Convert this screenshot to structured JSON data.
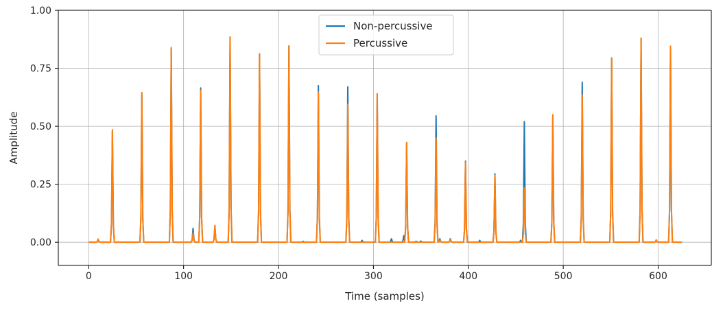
{
  "chart_data": {
    "type": "line",
    "title": "",
    "xlabel": "Time (samples)",
    "ylabel": "Amplitude",
    "xlim": [
      -32,
      656
    ],
    "ylim": [
      -0.1,
      1.0
    ],
    "xticks": [
      0,
      100,
      200,
      300,
      400,
      500,
      600
    ],
    "yticks": [
      0.0,
      0.25,
      0.5,
      0.75,
      1.0
    ],
    "ytick_labels": [
      "0.00",
      "0.25",
      "0.50",
      "0.75",
      "1.00"
    ],
    "grid": true,
    "legend_position": "top-center",
    "series": [
      {
        "name": "Non-percussive",
        "color": "#1f77b4",
        "n_samples": 626,
        "peaks": [
          {
            "x": 10,
            "y": 0.012
          },
          {
            "x": 25,
            "y": 0.48
          },
          {
            "x": 56,
            "y": 0.645
          },
          {
            "x": 87,
            "y": 0.835
          },
          {
            "x": 110,
            "y": 0.06
          },
          {
            "x": 118,
            "y": 0.665
          },
          {
            "x": 133,
            "y": 0.07
          },
          {
            "x": 149,
            "y": 0.885
          },
          {
            "x": 180,
            "y": 0.81
          },
          {
            "x": 211,
            "y": 0.845
          },
          {
            "x": 226,
            "y": 0.004
          },
          {
            "x": 242,
            "y": 0.675
          },
          {
            "x": 273,
            "y": 0.67
          },
          {
            "x": 288,
            "y": 0.008
          },
          {
            "x": 304,
            "y": 0.64
          },
          {
            "x": 319,
            "y": 0.015
          },
          {
            "x": 332,
            "y": 0.028
          },
          {
            "x": 335,
            "y": 0.43
          },
          {
            "x": 345,
            "y": 0.004
          },
          {
            "x": 350,
            "y": 0.005
          },
          {
            "x": 366,
            "y": 0.545
          },
          {
            "x": 370,
            "y": 0.015
          },
          {
            "x": 381,
            "y": 0.015
          },
          {
            "x": 397,
            "y": 0.35
          },
          {
            "x": 412,
            "y": 0.008
          },
          {
            "x": 428,
            "y": 0.295
          },
          {
            "x": 455,
            "y": 0.008
          },
          {
            "x": 459,
            "y": 0.52
          },
          {
            "x": 489,
            "y": 0.545
          },
          {
            "x": 520,
            "y": 0.69
          },
          {
            "x": 551,
            "y": 0.795
          },
          {
            "x": 582,
            "y": 0.88
          },
          {
            "x": 598,
            "y": 0.01
          },
          {
            "x": 613,
            "y": 0.845
          }
        ]
      },
      {
        "name": "Percussive",
        "color": "#ff7f0e",
        "n_samples": 626,
        "peaks": [
          {
            "x": 10,
            "y": 0.014
          },
          {
            "x": 25,
            "y": 0.485
          },
          {
            "x": 56,
            "y": 0.645
          },
          {
            "x": 87,
            "y": 0.84
          },
          {
            "x": 110,
            "y": 0.04
          },
          {
            "x": 118,
            "y": 0.655
          },
          {
            "x": 133,
            "y": 0.073
          },
          {
            "x": 149,
            "y": 0.885
          },
          {
            "x": 180,
            "y": 0.813
          },
          {
            "x": 211,
            "y": 0.847
          },
          {
            "x": 242,
            "y": 0.648
          },
          {
            "x": 273,
            "y": 0.595
          },
          {
            "x": 304,
            "y": 0.64
          },
          {
            "x": 335,
            "y": 0.43
          },
          {
            "x": 366,
            "y": 0.45
          },
          {
            "x": 370,
            "y": 0.01
          },
          {
            "x": 381,
            "y": 0.012
          },
          {
            "x": 397,
            "y": 0.345
          },
          {
            "x": 428,
            "y": 0.288
          },
          {
            "x": 459,
            "y": 0.235
          },
          {
            "x": 489,
            "y": 0.55
          },
          {
            "x": 520,
            "y": 0.635
          },
          {
            "x": 551,
            "y": 0.795
          },
          {
            "x": 582,
            "y": 0.88
          },
          {
            "x": 598,
            "y": 0.01
          },
          {
            "x": 613,
            "y": 0.845
          }
        ]
      }
    ]
  }
}
